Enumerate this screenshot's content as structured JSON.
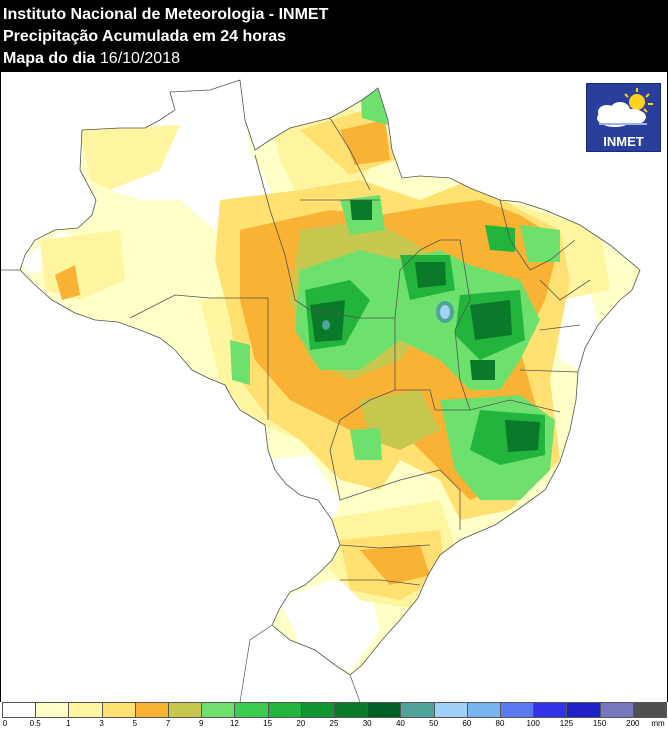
{
  "header": {
    "line1": "Instituto Nacional de Meteorologia - INMET",
    "line2": "Precipitação Acumulada em 24 horas",
    "line3_prefix": "Mapa do dia",
    "date": "16/10/2018"
  },
  "logo": {
    "text": "INMET",
    "icon": "sun-cloud-icon"
  },
  "legend": {
    "unit": "mm",
    "classes": [
      {
        "label": "0",
        "color": "#ffffff"
      },
      {
        "label": "0.5",
        "color": "#ffffc8"
      },
      {
        "label": "1",
        "color": "#fff5a0"
      },
      {
        "label": "3",
        "color": "#ffe070"
      },
      {
        "label": "5",
        "color": "#f9b233"
      },
      {
        "label": "7",
        "color": "#c8c850"
      },
      {
        "label": "9",
        "color": "#6ee06e"
      },
      {
        "label": "12",
        "color": "#3ccc50"
      },
      {
        "label": "15",
        "color": "#22b43c"
      },
      {
        "label": "20",
        "color": "#119632"
      },
      {
        "label": "25",
        "color": "#0a7a2a"
      },
      {
        "label": "30",
        "color": "#005f23"
      },
      {
        "label": "40",
        "color": "#4ea39a"
      },
      {
        "label": "50",
        "color": "#a0d2f8"
      },
      {
        "label": "60",
        "color": "#78b4f0"
      },
      {
        "label": "80",
        "color": "#5a78f0"
      },
      {
        "label": "100",
        "color": "#3232e6"
      },
      {
        "label": "125",
        "color": "#2020c8"
      },
      {
        "label": "150",
        "color": "#7878c0"
      },
      {
        "label": "200",
        "color": "#505050"
      }
    ]
  },
  "colors": {
    "background": "#ffffff",
    "header_bg": "#000000",
    "border": "#555555",
    "logo_bg": "#2a3f9c"
  }
}
